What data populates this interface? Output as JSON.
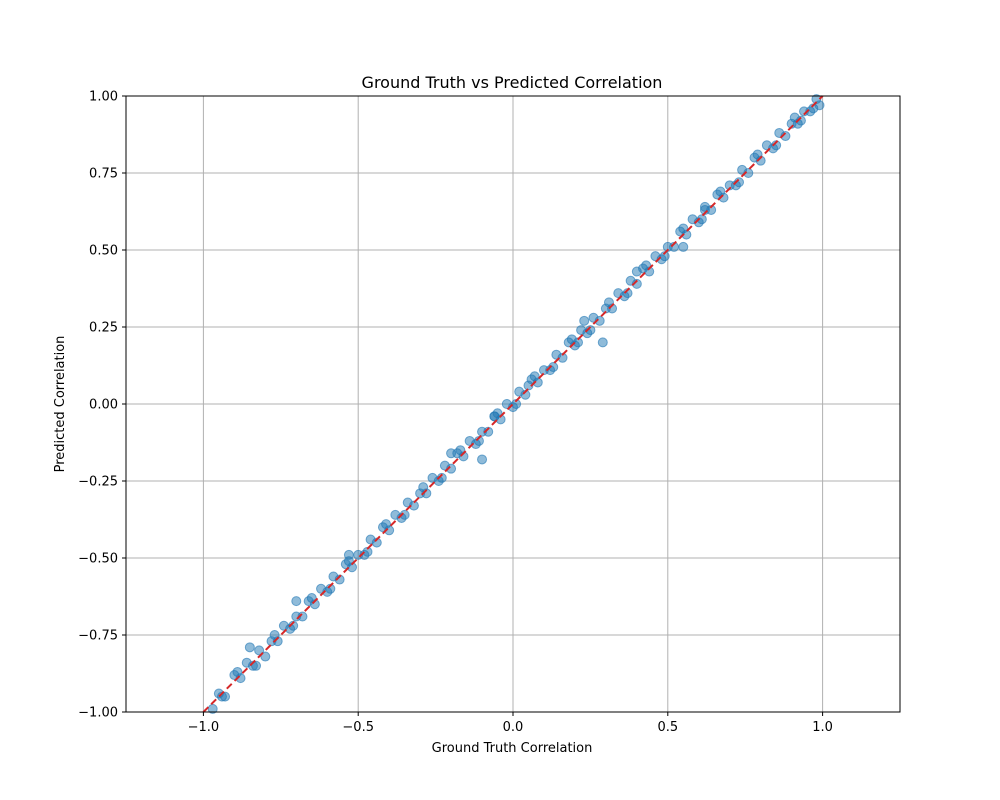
{
  "chart_data": {
    "type": "scatter",
    "title": "Ground Truth vs Predicted Correlation",
    "xlabel": "Ground Truth Correlation",
    "ylabel": "Predicted Correlation",
    "xlim": [
      -1.25,
      1.25
    ],
    "ylim": [
      -1.0,
      1.0
    ],
    "xticks": [
      -1.0,
      -0.5,
      0.0,
      0.5,
      1.0
    ],
    "xtick_labels": [
      "−1.0",
      "−0.5",
      "0.0",
      "0.5",
      "1.0"
    ],
    "yticks": [
      -1.0,
      -0.75,
      -0.5,
      -0.25,
      0.0,
      0.25,
      0.5,
      0.75,
      1.0
    ],
    "ytick_labels": [
      "−1.00",
      "−0.75",
      "−0.50",
      "−0.25",
      "0.00",
      "0.25",
      "0.50",
      "0.75",
      "1.00"
    ],
    "grid": true,
    "reference_line": {
      "x": [
        -1.0,
        1.0
      ],
      "y": [
        -1.0,
        1.0
      ],
      "color": "#d62728",
      "style": "dashed"
    },
    "point_color": "#1f77b4",
    "points": {
      "x": [
        -0.97,
        -0.95,
        -0.93,
        -0.9,
        -0.88,
        -0.86,
        -0.84,
        -0.82,
        -0.8,
        -0.78,
        -0.76,
        -0.74,
        -0.72,
        -0.7,
        -0.68,
        -0.66,
        -0.64,
        -0.62,
        -0.6,
        -0.58,
        -0.56,
        -0.54,
        -0.52,
        -0.5,
        -0.48,
        -0.46,
        -0.44,
        -0.42,
        -0.4,
        -0.38,
        -0.36,
        -0.34,
        -0.32,
        -0.3,
        -0.28,
        -0.26,
        -0.24,
        -0.22,
        -0.2,
        -0.18,
        -0.16,
        -0.14,
        -0.12,
        -0.1,
        -0.08,
        -0.06,
        -0.04,
        -0.02,
        0.0,
        0.02,
        0.04,
        0.06,
        0.08,
        0.1,
        0.12,
        0.14,
        0.16,
        0.18,
        0.2,
        0.22,
        0.24,
        0.26,
        0.28,
        0.3,
        0.32,
        0.34,
        0.36,
        0.38,
        0.4,
        0.42,
        0.44,
        0.46,
        0.48,
        0.5,
        0.52,
        0.54,
        0.56,
        0.58,
        0.6,
        0.62,
        0.64,
        0.66,
        0.68,
        0.7,
        0.72,
        0.74,
        0.76,
        0.78,
        0.8,
        0.82,
        0.84,
        0.86,
        0.88,
        0.9,
        0.92,
        0.94,
        0.96,
        0.98,
        -0.94,
        -0.89,
        -0.83,
        -0.77,
        -0.71,
        -0.65,
        -0.59,
        -0.53,
        -0.47,
        -0.41,
        -0.35,
        -0.29,
        -0.23,
        -0.17,
        -0.11,
        -0.05,
        0.01,
        0.07,
        0.13,
        0.19,
        0.25,
        0.31,
        0.37,
        0.43,
        0.49,
        0.55,
        0.61,
        0.67,
        0.73,
        0.79,
        0.85,
        0.91,
        0.97,
        -0.53,
        -0.7,
        -0.85,
        -0.2,
        -0.1,
        -0.06,
        0.05,
        0.21,
        0.23,
        0.29,
        0.4,
        0.55,
        0.62,
        0.93,
        0.99
      ],
      "y": [
        -0.99,
        -0.94,
        -0.95,
        -0.88,
        -0.89,
        -0.84,
        -0.85,
        -0.8,
        -0.82,
        -0.77,
        -0.77,
        -0.72,
        -0.73,
        -0.69,
        -0.69,
        -0.64,
        -0.65,
        -0.6,
        -0.61,
        -0.56,
        -0.57,
        -0.52,
        -0.53,
        -0.49,
        -0.49,
        -0.44,
        -0.45,
        -0.4,
        -0.41,
        -0.36,
        -0.37,
        -0.32,
        -0.33,
        -0.29,
        -0.29,
        -0.24,
        -0.25,
        -0.2,
        -0.21,
        -0.16,
        -0.17,
        -0.12,
        -0.13,
        -0.09,
        -0.09,
        -0.04,
        -0.05,
        0.0,
        -0.01,
        0.04,
        0.03,
        0.08,
        0.07,
        0.11,
        0.11,
        0.16,
        0.15,
        0.2,
        0.19,
        0.24,
        0.23,
        0.28,
        0.27,
        0.31,
        0.31,
        0.36,
        0.35,
        0.4,
        0.39,
        0.44,
        0.43,
        0.48,
        0.47,
        0.51,
        0.51,
        0.56,
        0.55,
        0.6,
        0.59,
        0.64,
        0.63,
        0.68,
        0.67,
        0.71,
        0.71,
        0.76,
        0.75,
        0.8,
        0.79,
        0.84,
        0.83,
        0.88,
        0.87,
        0.91,
        0.91,
        0.95,
        0.95,
        0.99,
        -0.95,
        -0.87,
        -0.85,
        -0.75,
        -0.72,
        -0.63,
        -0.6,
        -0.51,
        -0.48,
        -0.39,
        -0.36,
        -0.27,
        -0.24,
        -0.15,
        -0.12,
        -0.03,
        0.0,
        0.09,
        0.12,
        0.21,
        0.24,
        0.33,
        0.36,
        0.45,
        0.48,
        0.57,
        0.6,
        0.69,
        0.72,
        0.81,
        0.84,
        0.93,
        0.96,
        -0.49,
        -0.64,
        -0.79,
        -0.16,
        -0.18,
        -0.04,
        0.06,
        0.2,
        0.27,
        0.2,
        0.43,
        0.51,
        0.63,
        0.92,
        0.97
      ]
    }
  }
}
